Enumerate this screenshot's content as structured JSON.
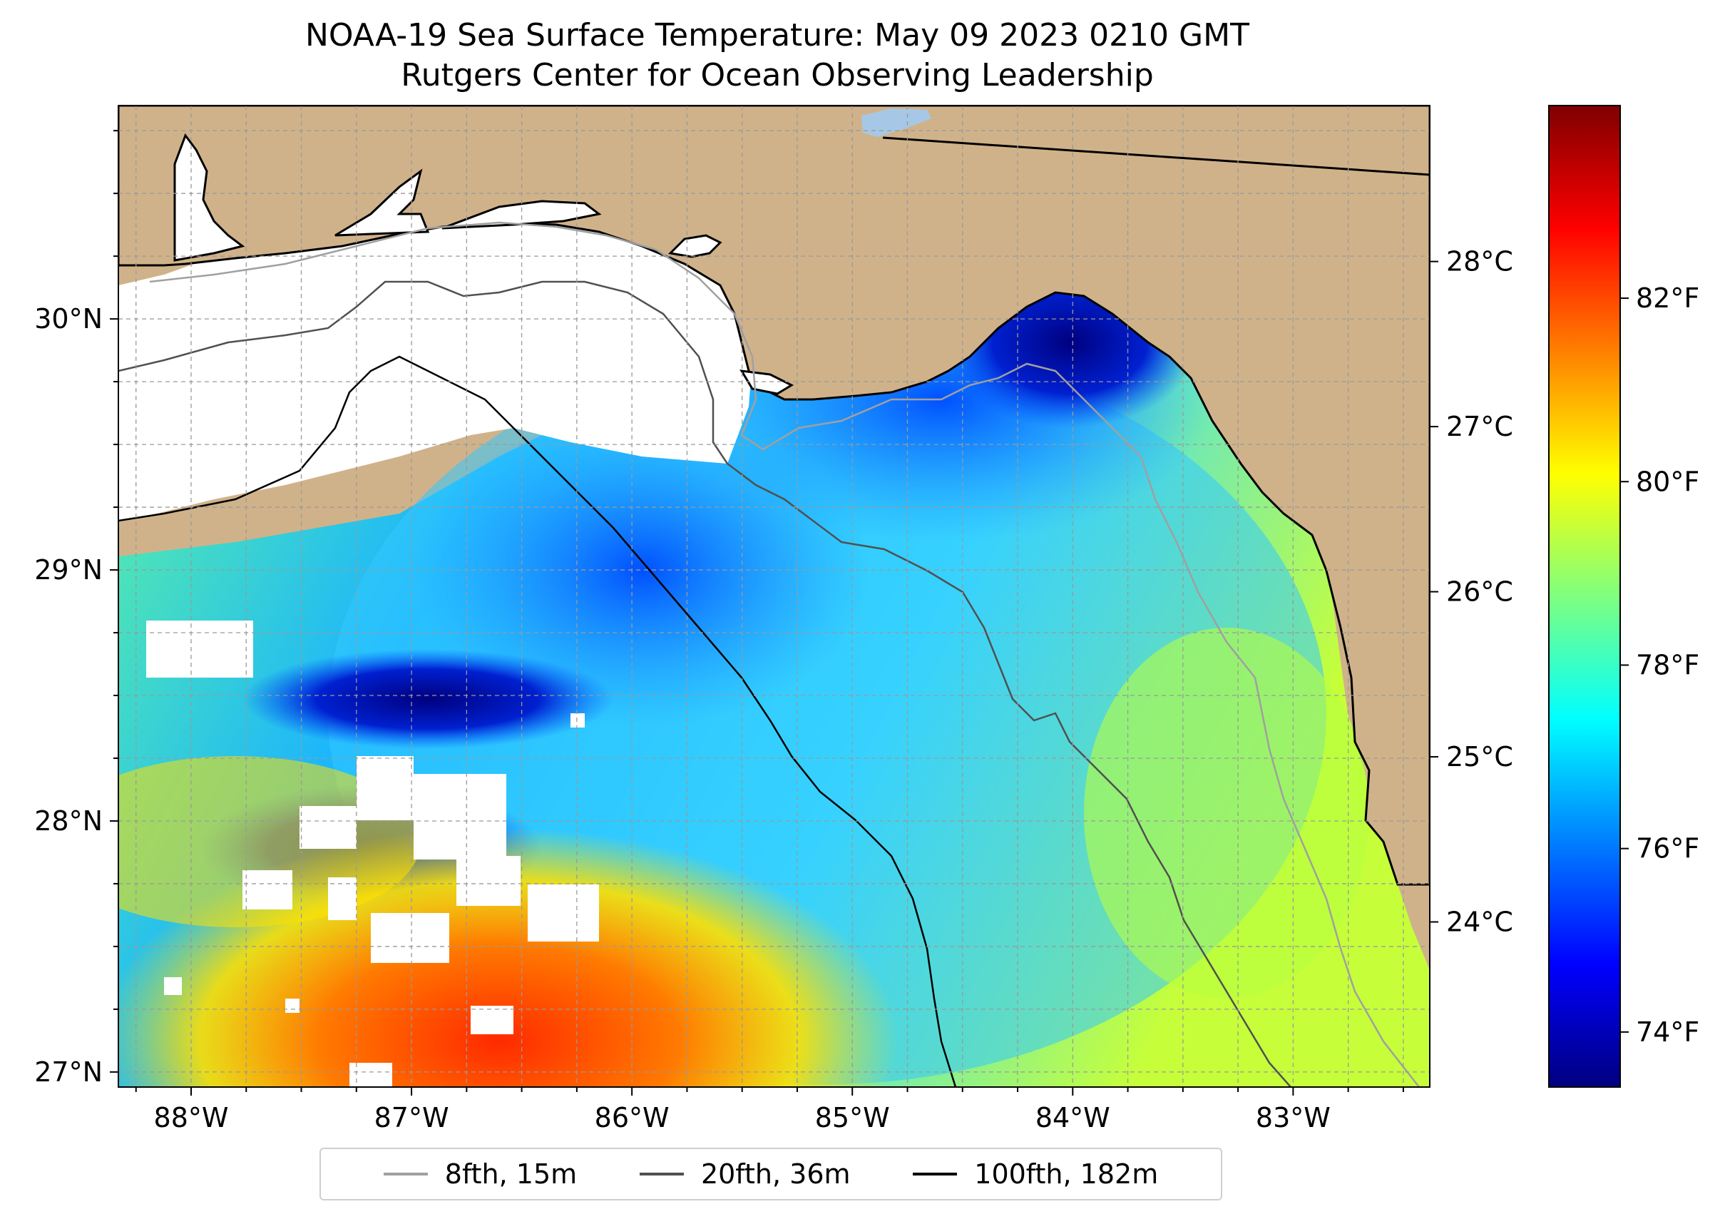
{
  "title": {
    "line1": "NOAA-19 Sea Surface Temperature: May 09 2023 0210 GMT",
    "line2": "Rutgers Center for Ocean Observing Leadership"
  },
  "map": {
    "lon_range": [
      -88.33,
      -82.38
    ],
    "lat_range": [
      26.94,
      30.85
    ],
    "land_color": "#D0B28A",
    "lon_ticks": [
      {
        "value": -88,
        "label": "88°W"
      },
      {
        "value": -87,
        "label": "87°W"
      },
      {
        "value": -86,
        "label": "86°W"
      },
      {
        "value": -85,
        "label": "85°W"
      },
      {
        "value": -84,
        "label": "84°W"
      },
      {
        "value": -83,
        "label": "83°W"
      }
    ],
    "lat_ticks": [
      {
        "value": 30,
        "label": "30°N"
      },
      {
        "value": 29,
        "label": "29°N"
      },
      {
        "value": 28,
        "label": "28°N"
      },
      {
        "value": 27,
        "label": "27°N"
      }
    ]
  },
  "colorbar": {
    "celsius_ticks": [
      {
        "value": 28,
        "label": "28°C"
      },
      {
        "value": 27,
        "label": "27°C"
      },
      {
        "value": 26,
        "label": "26°C"
      },
      {
        "value": 25,
        "label": "25°C"
      },
      {
        "value": 24,
        "label": "24°C"
      }
    ],
    "fahrenheit_ticks": [
      {
        "value": 82,
        "label": "82°F"
      },
      {
        "value": 80,
        "label": "80°F"
      },
      {
        "value": 78,
        "label": "78°F"
      },
      {
        "value": 76,
        "label": "76°F"
      },
      {
        "value": 74,
        "label": "74°F"
      }
    ],
    "range_f": [
      73.4,
      84.1
    ],
    "colormap": [
      "#00007F",
      "#0000FF",
      "#007FFF",
      "#00FFFF",
      "#7FFF7F",
      "#FFFF00",
      "#FF7F00",
      "#FF0000",
      "#7F0000"
    ]
  },
  "legend": [
    {
      "label": "8fth, 15m",
      "color": "#A0A0A0"
    },
    {
      "label": "20fth, 36m",
      "color": "#505050"
    },
    {
      "label": "100fth, 182m",
      "color": "#000000"
    }
  ]
}
